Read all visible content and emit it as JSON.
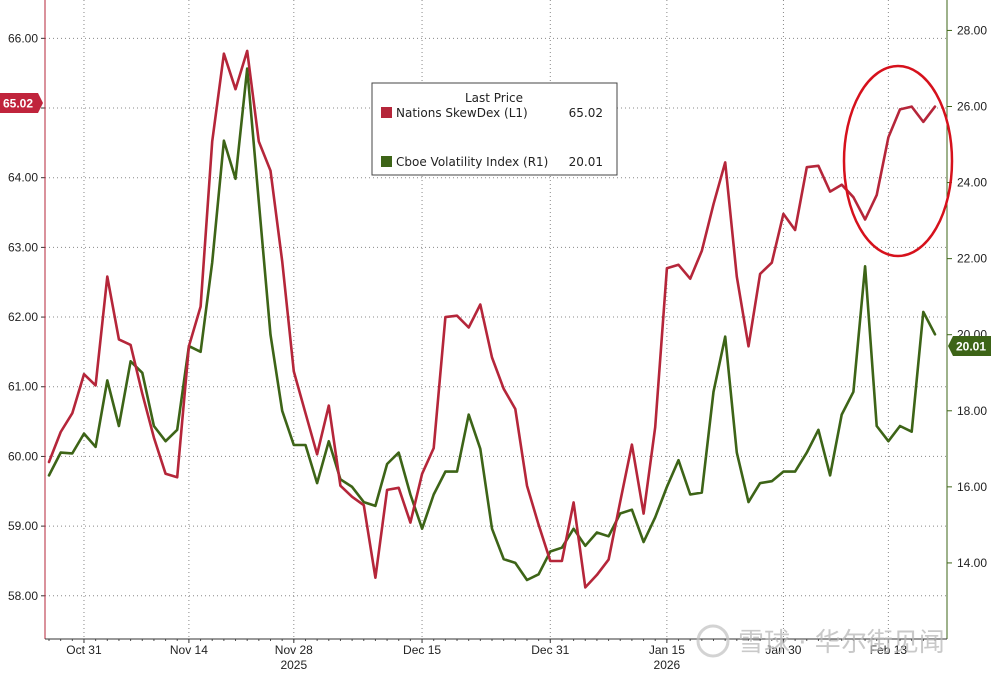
{
  "chart_data": {
    "type": "line",
    "legend": {
      "title": "Last Price",
      "position": "top-center",
      "entries": [
        {
          "label": "Nations SkewDex  (L1)",
          "value": "65.02"
        },
        {
          "label": "Cboe Volatility Index  (R1)",
          "value": "20.01"
        }
      ]
    },
    "x_tick_labels": [
      {
        "index": 3,
        "label": "Oct 31"
      },
      {
        "index": 12,
        "label": "Nov 14"
      },
      {
        "index": 21,
        "label": "Nov 28",
        "sub": "2025"
      },
      {
        "index": 32,
        "label": "Dec 15"
      },
      {
        "index": 43,
        "label": "Dec 31"
      },
      {
        "index": 53,
        "label": "Jan 15",
        "sub": "2026"
      },
      {
        "index": 63,
        "label": "Jan 30"
      },
      {
        "index": 72,
        "label": "Feb 13"
      }
    ],
    "left_axis": {
      "ylim": [
        57.38,
        66.55
      ],
      "ticks": [
        58,
        59,
        60,
        61,
        62,
        63,
        64,
        65,
        66
      ],
      "tick_labels": [
        "58.00",
        "59.00",
        "60.00",
        "61.00",
        "62.00",
        "63.00",
        "64.00",
        "65.00",
        "66.00"
      ],
      "last_value_tag": "65.02"
    },
    "right_axis": {
      "ylim": [
        12.0,
        28.8
      ],
      "ticks": [
        14,
        16,
        18,
        20,
        22,
        24,
        26,
        28
      ],
      "tick_labels": [
        "14.00",
        "16.00",
        "18.00",
        "20.00",
        "22.00",
        "24.00",
        "26.00",
        "28.00"
      ],
      "last_value_tag": "20.01"
    },
    "grid": true,
    "series": [
      {
        "name": "Nations SkewDex",
        "axis": "left",
        "color": "#b5263a",
        "values": [
          59.92,
          60.35,
          60.62,
          61.18,
          61.02,
          62.58,
          61.68,
          61.6,
          60.9,
          60.27,
          59.75,
          59.7,
          61.58,
          62.15,
          64.52,
          65.78,
          65.27,
          65.82,
          64.52,
          64.1,
          62.8,
          61.22,
          60.62,
          60.03,
          60.73,
          59.58,
          59.42,
          59.3,
          58.26,
          59.52,
          59.55,
          59.05,
          59.75,
          60.12,
          62.0,
          62.02,
          61.85,
          62.18,
          61.42,
          60.97,
          60.68,
          59.58,
          59.02,
          58.5,
          58.5,
          59.34,
          58.12,
          58.3,
          58.52,
          59.35,
          60.17,
          59.18,
          60.42,
          62.7,
          62.75,
          62.55,
          62.95,
          63.62,
          64.22,
          62.58,
          61.58,
          62.62,
          62.78,
          63.48,
          63.25,
          64.15,
          64.17,
          63.8,
          63.9,
          63.72,
          63.4,
          63.75,
          64.58,
          64.98,
          65.02,
          64.8,
          65.02
        ]
      },
      {
        "name": "Cboe Volatility Index",
        "axis": "right",
        "color": "#3d6417",
        "values": [
          16.3,
          16.9,
          16.88,
          17.4,
          17.05,
          18.8,
          17.6,
          19.3,
          19.0,
          17.6,
          17.2,
          17.5,
          19.7,
          19.55,
          21.9,
          25.1,
          24.1,
          27.0,
          23.5,
          20.0,
          18.0,
          17.1,
          17.1,
          16.1,
          17.2,
          16.2,
          16.0,
          15.6,
          15.5,
          16.6,
          16.9,
          15.8,
          14.9,
          15.8,
          16.4,
          16.4,
          17.9,
          17.0,
          14.9,
          14.1,
          14.0,
          13.55,
          13.7,
          14.3,
          14.4,
          14.9,
          14.45,
          14.8,
          14.7,
          15.3,
          15.4,
          14.55,
          15.2,
          16.0,
          16.7,
          15.8,
          15.85,
          18.5,
          19.95,
          16.9,
          15.6,
          16.1,
          16.15,
          16.4,
          16.4,
          16.9,
          17.5,
          16.3,
          17.9,
          18.5,
          21.8,
          17.6,
          17.2,
          17.6,
          17.45,
          20.6,
          20.01
        ]
      }
    ]
  },
  "watermark": {
    "text": "雪球 · 华尔街见闻"
  }
}
